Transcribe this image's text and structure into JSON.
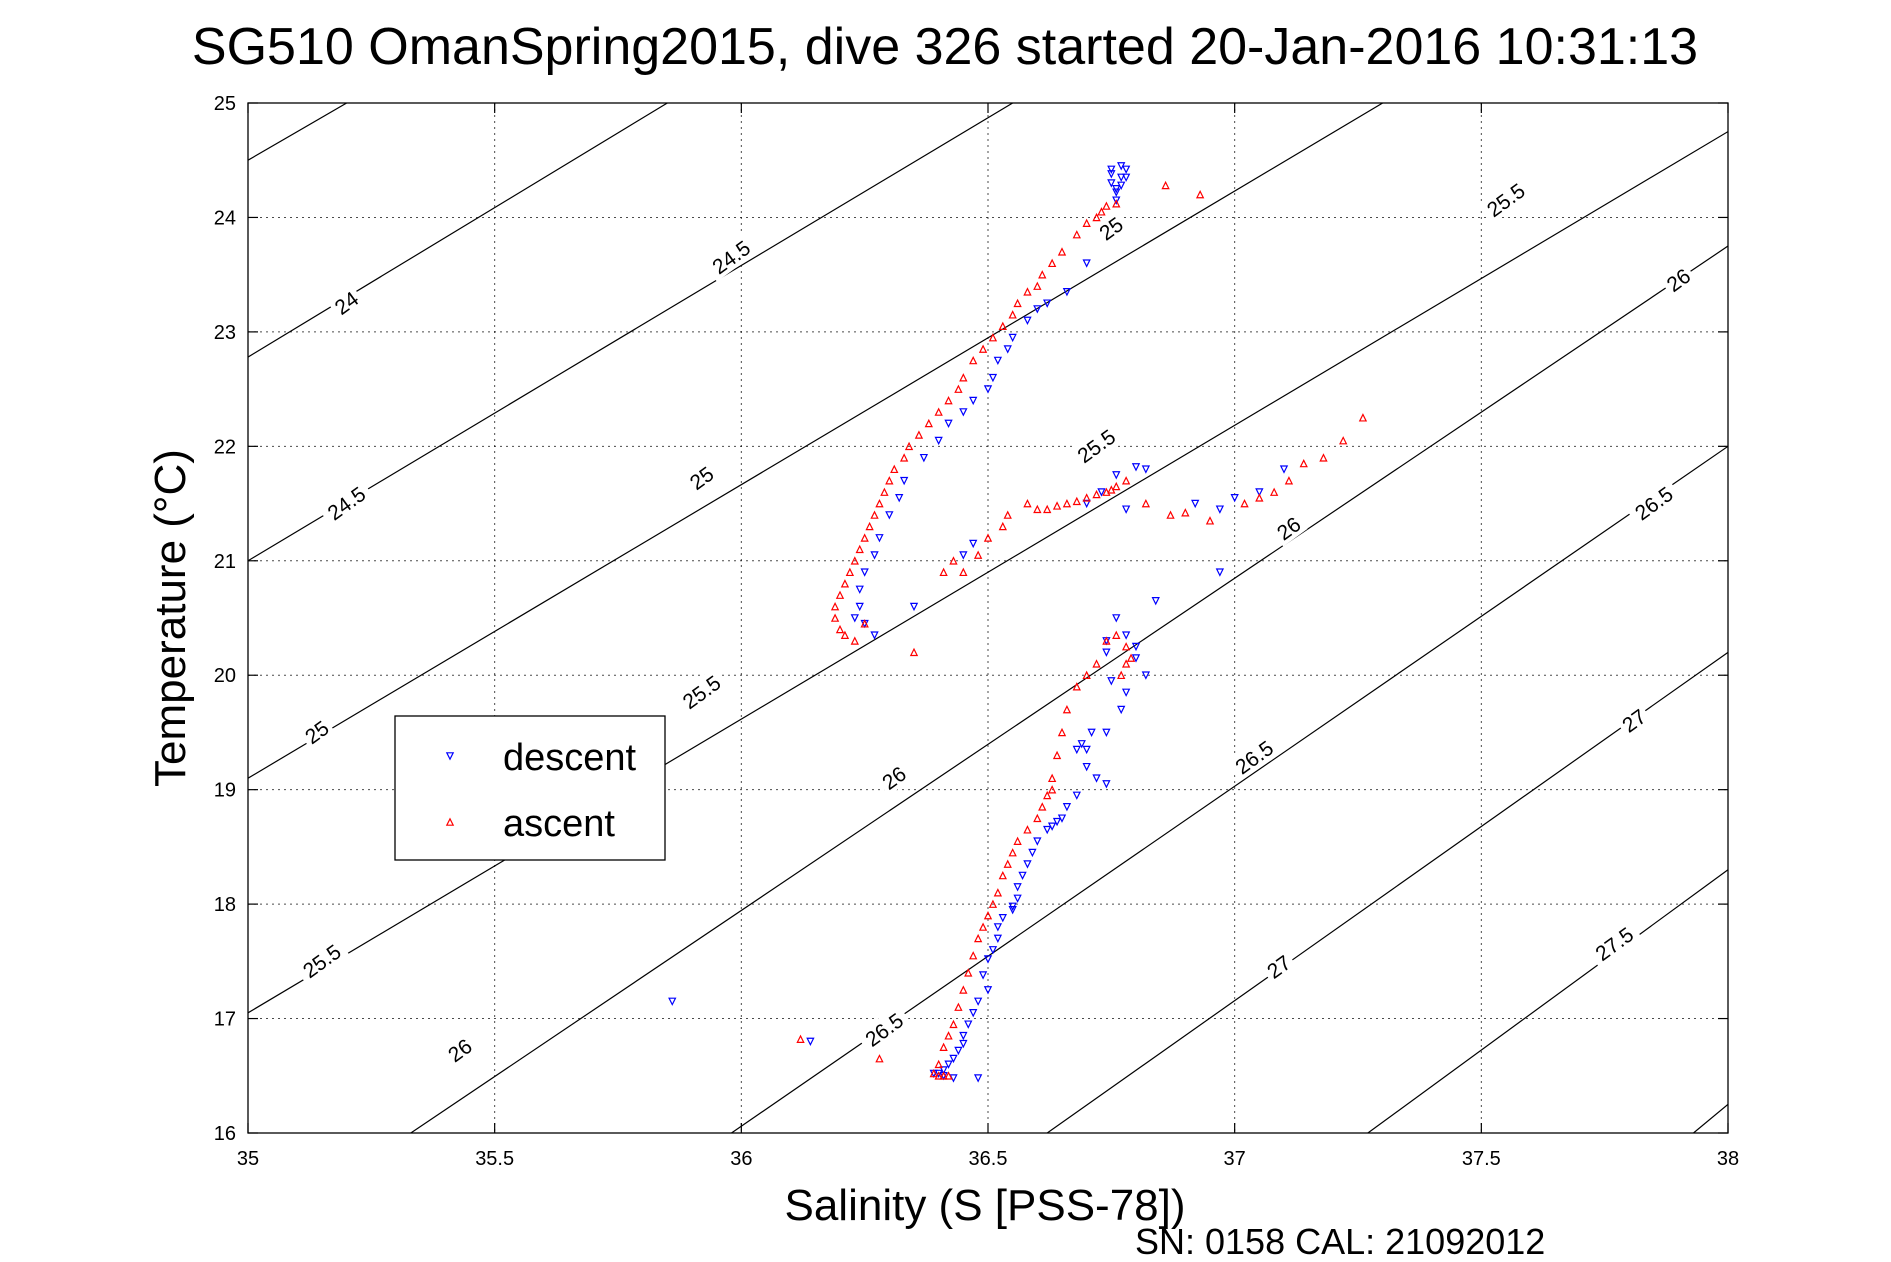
{
  "chart_data": {
    "type": "scatter",
    "title": "SG510 OmanSpring2015, dive 326 started 20-Jan-2016 10:31:13",
    "xlabel": "Salinity (S [PSS-78])",
    "ylabel": "Temperature (°C)",
    "xlim": [
      35,
      38
    ],
    "ylim": [
      16,
      25
    ],
    "xticks": [
      35,
      35.5,
      36,
      36.5,
      37,
      37.5,
      38
    ],
    "xtick_labels": [
      "35",
      "35.5",
      "36",
      "36.5",
      "37",
      "37.5",
      "38"
    ],
    "yticks": [
      16,
      17,
      18,
      19,
      20,
      21,
      22,
      23,
      24,
      25
    ],
    "ytick_labels": [
      "16",
      "17",
      "18",
      "19",
      "20",
      "21",
      "22",
      "23",
      "24",
      "25"
    ],
    "grid": true,
    "legend_position": "left",
    "contour_levels": [
      24,
      24.5,
      25,
      25.5,
      26,
      26.5,
      27,
      27.5
    ],
    "contour_lines": [
      {
        "sigma": 23.5,
        "start": [
          35,
          24.5
        ],
        "end": [
          35.2,
          25
        ]
      },
      {
        "sigma": 24,
        "start": [
          35,
          22.78
        ],
        "end": [
          35.85,
          25
        ]
      },
      {
        "sigma": 24.5,
        "start": [
          35,
          21.0
        ],
        "end": [
          36.55,
          25
        ]
      },
      {
        "sigma": 25,
        "start": [
          35,
          19.1
        ],
        "end": [
          37.3,
          25
        ]
      },
      {
        "sigma": 25.5,
        "start": [
          35,
          17.05
        ],
        "end": [
          38,
          24.75
        ]
      },
      {
        "sigma": 26,
        "start": [
          35.33,
          16
        ],
        "end": [
          38,
          23.75
        ]
      },
      {
        "sigma": 26.5,
        "start": [
          35.98,
          16
        ],
        "end": [
          38,
          22.0
        ]
      },
      {
        "sigma": 27,
        "start": [
          36.62,
          16
        ],
        "end": [
          38,
          20.2
        ]
      },
      {
        "sigma": 27.5,
        "start": [
          37.27,
          16
        ],
        "end": [
          38,
          18.3
        ]
      },
      {
        "sigma": 28,
        "start": [
          37.93,
          16
        ],
        "end": [
          38,
          16.25
        ]
      }
    ],
    "contour_labels": [
      {
        "text": "24",
        "x": 35.2,
        "y": 23.25,
        "angle": -36
      },
      {
        "text": "24.5",
        "x": 35.98,
        "y": 23.65,
        "angle": -36
      },
      {
        "text": "25",
        "x": 36.75,
        "y": 23.9,
        "angle": -36
      },
      {
        "text": "25.5",
        "x": 37.55,
        "y": 24.15,
        "angle": -36
      },
      {
        "text": "26",
        "x": 37.9,
        "y": 23.45,
        "angle": -36
      },
      {
        "text": "24.5",
        "x": 35.2,
        "y": 21.5,
        "angle": -36
      },
      {
        "text": "25",
        "x": 35.92,
        "y": 21.72,
        "angle": -36
      },
      {
        "text": "25.5",
        "x": 36.72,
        "y": 22.0,
        "angle": -36
      },
      {
        "text": "26",
        "x": 37.11,
        "y": 21.28,
        "angle": -36
      },
      {
        "text": "26.5",
        "x": 37.85,
        "y": 21.5,
        "angle": -36
      },
      {
        "text": "25",
        "x": 35.14,
        "y": 19.5,
        "angle": -36
      },
      {
        "text": "25.5",
        "x": 35.92,
        "y": 19.85,
        "angle": -36
      },
      {
        "text": "26",
        "x": 36.31,
        "y": 19.1,
        "angle": -36
      },
      {
        "text": "26.5",
        "x": 37.04,
        "y": 19.28,
        "angle": -36
      },
      {
        "text": "27",
        "x": 37.81,
        "y": 19.6,
        "angle": -36
      },
      {
        "text": "25.5",
        "x": 35.15,
        "y": 17.5,
        "angle": -36
      },
      {
        "text": "26",
        "x": 35.43,
        "y": 16.72,
        "angle": -36
      },
      {
        "text": "26.5",
        "x": 36.29,
        "y": 16.9,
        "angle": -36
      },
      {
        "text": "27",
        "x": 37.09,
        "y": 17.45,
        "angle": -36
      },
      {
        "text": "27.5",
        "x": 37.77,
        "y": 17.65,
        "angle": -36
      }
    ],
    "series": [
      {
        "name": "descent",
        "color": "#0000ff",
        "marker": "triangle-down",
        "x": [
          36.78,
          36.77,
          36.77,
          36.76,
          36.76,
          36.75,
          36.75,
          36.75,
          36.76,
          36.77,
          36.78,
          36.7,
          36.66,
          36.62,
          36.6,
          36.58,
          36.55,
          36.54,
          36.52,
          36.51,
          36.5,
          36.47,
          36.45,
          36.42,
          36.4,
          36.37,
          36.33,
          36.32,
          36.3,
          36.28,
          36.27,
          36.25,
          36.24,
          36.24,
          36.23,
          36.25,
          36.27,
          36.35,
          36.45,
          36.47,
          36.8,
          36.82,
          36.76,
          36.73,
          36.7,
          36.78,
          36.92,
          36.97,
          36.97,
          37.0,
          37.05,
          37.1,
          36.74,
          36.78,
          36.8,
          36.8,
          36.82,
          36.84,
          36.76,
          36.74,
          36.75,
          36.78,
          36.77,
          36.74,
          36.71,
          36.69,
          36.7,
          36.68,
          36.7,
          36.72,
          36.74,
          36.68,
          36.66,
          36.65,
          36.64,
          36.63,
          36.62,
          36.6,
          36.59,
          36.58,
          36.57,
          36.56,
          36.56,
          36.55,
          36.55,
          36.53,
          36.52,
          36.52,
          36.51,
          36.5,
          36.49,
          36.5,
          36.48,
          36.47,
          36.46,
          36.45,
          36.45,
          36.44,
          36.43,
          36.42,
          36.41,
          36.4,
          36.39,
          36.41,
          36.43,
          36.48,
          35.86,
          36.14
        ],
        "y": [
          24.42,
          24.35,
          24.28,
          24.22,
          24.15,
          24.42,
          24.38,
          24.3,
          24.25,
          24.45,
          24.35,
          23.6,
          23.35,
          23.25,
          23.2,
          23.1,
          22.95,
          22.85,
          22.75,
          22.6,
          22.5,
          22.4,
          22.3,
          22.2,
          22.05,
          21.9,
          21.7,
          21.55,
          21.4,
          21.2,
          21.05,
          20.9,
          20.75,
          20.6,
          20.5,
          20.45,
          20.35,
          20.6,
          21.05,
          21.15,
          21.82,
          21.8,
          21.75,
          21.6,
          21.5,
          21.45,
          21.5,
          21.45,
          20.9,
          21.55,
          21.6,
          21.8,
          20.3,
          20.35,
          20.25,
          20.15,
          20.0,
          20.65,
          20.5,
          20.2,
          19.95,
          19.85,
          19.7,
          19.5,
          19.5,
          19.4,
          19.35,
          19.35,
          19.2,
          19.1,
          19.05,
          18.95,
          18.85,
          18.75,
          18.72,
          18.68,
          18.65,
          18.55,
          18.45,
          18.35,
          18.25,
          18.15,
          18.05,
          17.98,
          17.95,
          17.88,
          17.8,
          17.7,
          17.6,
          17.52,
          17.38,
          17.25,
          17.15,
          17.05,
          16.95,
          16.85,
          16.78,
          16.72,
          16.65,
          16.6,
          16.55,
          16.52,
          16.52,
          16.5,
          16.48,
          16.48,
          17.15,
          16.8
        ],
        "labels_from_legend": true
      },
      {
        "name": "ascent",
        "color": "#ff0000",
        "marker": "triangle-up",
        "x": [
          36.76,
          36.74,
          36.73,
          36.72,
          36.7,
          36.68,
          36.65,
          36.63,
          36.61,
          36.6,
          36.58,
          36.56,
          36.55,
          36.53,
          36.51,
          36.49,
          36.47,
          36.45,
          36.44,
          36.42,
          36.4,
          36.38,
          36.36,
          36.34,
          36.33,
          36.31,
          36.3,
          36.29,
          36.28,
          36.27,
          36.26,
          36.25,
          36.24,
          36.23,
          36.22,
          36.21,
          36.2,
          36.19,
          36.19,
          36.2,
          36.21,
          36.23,
          36.25,
          36.35,
          36.41,
          36.43,
          36.45,
          36.48,
          36.5,
          36.53,
          36.54,
          36.58,
          36.6,
          36.62,
          36.64,
          36.66,
          36.68,
          36.7,
          36.72,
          36.74,
          36.75,
          36.76,
          36.78,
          36.82,
          36.87,
          36.9,
          36.95,
          37.02,
          37.05,
          37.08,
          37.11,
          37.14,
          37.18,
          37.22,
          37.26,
          36.78,
          36.79,
          36.77,
          36.78,
          36.76,
          36.74,
          36.72,
          36.7,
          36.68,
          36.66,
          36.65,
          36.64,
          36.63,
          36.62,
          36.61,
          36.6,
          36.58,
          36.56,
          36.55,
          36.54,
          36.53,
          36.52,
          36.51,
          36.5,
          36.49,
          36.48,
          36.47,
          36.46,
          36.45,
          36.44,
          36.43,
          36.42,
          36.41,
          36.4,
          36.39,
          36.4,
          36.41,
          36.42,
          36.12,
          36.28,
          36.63,
          36.86,
          36.93
        ],
        "y": [
          24.12,
          24.1,
          24.05,
          24.0,
          23.95,
          23.85,
          23.7,
          23.6,
          23.5,
          23.4,
          23.35,
          23.25,
          23.15,
          23.05,
          22.95,
          22.85,
          22.75,
          22.6,
          22.5,
          22.4,
          22.3,
          22.2,
          22.1,
          22.0,
          21.9,
          21.8,
          21.7,
          21.6,
          21.5,
          21.4,
          21.3,
          21.2,
          21.1,
          21.0,
          20.9,
          20.8,
          20.7,
          20.6,
          20.5,
          20.4,
          20.35,
          20.3,
          20.45,
          20.2,
          20.9,
          21.0,
          20.9,
          21.05,
          21.2,
          21.3,
          21.4,
          21.5,
          21.45,
          21.45,
          21.48,
          21.5,
          21.52,
          21.55,
          21.58,
          21.6,
          21.62,
          21.65,
          21.7,
          21.5,
          21.4,
          21.42,
          21.35,
          21.5,
          21.55,
          21.6,
          21.7,
          21.85,
          21.9,
          22.05,
          22.25,
          20.1,
          20.15,
          20.0,
          20.25,
          20.35,
          20.3,
          20.1,
          20.0,
          19.9,
          19.7,
          19.5,
          19.3,
          19.1,
          18.95,
          18.85,
          18.75,
          18.65,
          18.55,
          18.45,
          18.35,
          18.25,
          18.1,
          18.0,
          17.9,
          17.8,
          17.7,
          17.55,
          17.4,
          17.25,
          17.1,
          16.95,
          16.85,
          16.75,
          16.6,
          16.52,
          16.5,
          16.5,
          16.5,
          16.82,
          16.65,
          19.0,
          24.28,
          24.2
        ],
        "labels_from_legend": true
      }
    ],
    "legend": [
      {
        "name": "descent",
        "color": "#0000ff",
        "marker": "triangle-down"
      },
      {
        "name": "ascent",
        "color": "#ff0000",
        "marker": "triangle-up"
      }
    ],
    "footer": "SN: 0158  CAL: 21092012"
  }
}
